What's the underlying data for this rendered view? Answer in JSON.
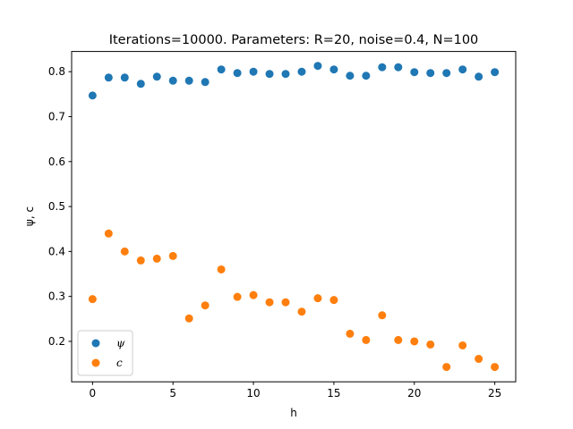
{
  "chart_data": {
    "type": "scatter",
    "title": "Iterations=10000. Parameters: R=20, noise=0.4, N=100",
    "xlabel": "h",
    "ylabel": "ψ, c",
    "xlim": [
      -1.3,
      26.3
    ],
    "ylim": [
      0.11,
      0.845
    ],
    "xticks": [
      0,
      5,
      10,
      15,
      20,
      25
    ],
    "yticks": [
      0.2,
      0.3,
      0.4,
      0.5,
      0.6,
      0.7,
      0.8
    ],
    "grid": false,
    "legend_position": "lower-left",
    "x": [
      0,
      1,
      2,
      3,
      4,
      5,
      6,
      7,
      8,
      9,
      10,
      11,
      12,
      13,
      14,
      15,
      16,
      17,
      18,
      19,
      20,
      21,
      22,
      23,
      24,
      25
    ],
    "series": [
      {
        "name": "ψ",
        "color": "#1f77b4",
        "values": [
          0.747,
          0.787,
          0.787,
          0.773,
          0.789,
          0.78,
          0.78,
          0.777,
          0.805,
          0.797,
          0.8,
          0.795,
          0.795,
          0.8,
          0.813,
          0.805,
          0.791,
          0.791,
          0.81,
          0.81,
          0.799,
          0.797,
          0.797,
          0.805,
          0.789,
          0.799
        ]
      },
      {
        "name": "c",
        "color": "#ff7f0e",
        "values": [
          0.294,
          0.44,
          0.4,
          0.38,
          0.384,
          0.39,
          0.251,
          0.28,
          0.36,
          0.299,
          0.303,
          0.287,
          0.287,
          0.266,
          0.296,
          0.292,
          0.217,
          0.203,
          0.258,
          0.203,
          0.2,
          0.193,
          0.143,
          0.191,
          0.161,
          0.143
        ]
      }
    ]
  }
}
